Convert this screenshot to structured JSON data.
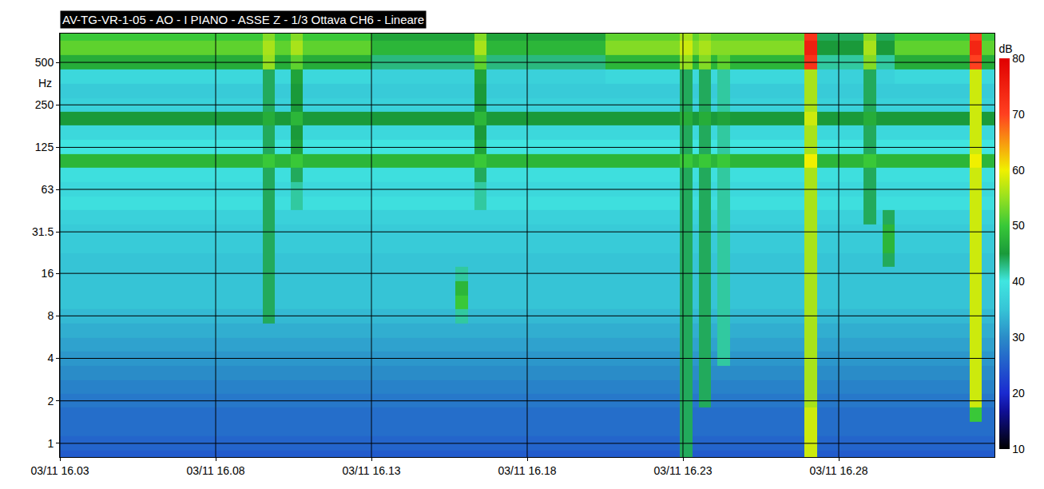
{
  "chart_data": {
    "type": "heatmap",
    "title": "AV-TG-VR-1-05 - AO - I PIANO - ASSE Z - 1/3 Ottava CH6 - Lineare",
    "ylabel": "Hz",
    "x": [
      0,
      6.5,
      6.9,
      7.4,
      7.8,
      10,
      12.7,
      13.1,
      13.3,
      13.7,
      17.5,
      19.9,
      20.3,
      20.5,
      20.9,
      21.1,
      21.5,
      23.9,
      24.3,
      25.8,
      26.2,
      26.4,
      26.8,
      29.2,
      29.6,
      30
    ],
    "y": [
      0.8,
      1,
      1.25,
      1.6,
      2,
      2.5,
      3.15,
      4,
      5,
      6.3,
      8,
      10,
      12.5,
      16,
      20,
      25,
      31.5,
      40,
      50,
      63,
      80,
      100,
      125,
      160,
      200,
      250,
      315,
      400,
      500,
      630,
      800
    ],
    "z": [
      [
        25,
        25,
        25,
        25,
        25,
        25,
        25,
        25,
        25,
        25,
        25,
        44,
        25,
        25,
        25,
        25,
        25,
        58,
        25,
        25,
        25,
        25,
        25,
        25,
        25
      ],
      [
        26,
        26,
        26,
        26,
        26,
        26,
        26,
        26,
        26,
        26,
        26,
        44,
        26,
        26,
        26,
        26,
        26,
        58,
        26,
        26,
        26,
        26,
        26,
        26,
        26
      ],
      [
        27,
        27,
        27,
        27,
        27,
        27,
        27,
        27,
        27,
        27,
        27,
        44,
        27,
        27,
        27,
        27,
        27,
        58,
        27,
        27,
        27,
        27,
        27,
        27,
        27
      ],
      [
        27,
        27,
        27,
        27,
        27,
        27,
        27,
        27,
        27,
        27,
        27,
        44,
        27,
        27,
        27,
        27,
        27,
        58,
        27,
        27,
        27,
        27,
        27,
        50,
        27
      ],
      [
        28,
        28,
        28,
        28,
        28,
        28,
        28,
        28,
        28,
        28,
        28,
        44,
        28,
        44,
        28,
        28,
        28,
        56,
        28,
        28,
        28,
        28,
        28,
        58,
        28
      ],
      [
        29,
        29,
        29,
        29,
        29,
        29,
        29,
        29,
        29,
        29,
        29,
        44,
        29,
        44,
        29,
        29,
        29,
        56,
        29,
        29,
        29,
        29,
        29,
        58,
        29
      ],
      [
        30,
        30,
        30,
        30,
        30,
        30,
        30,
        30,
        30,
        30,
        30,
        44,
        30,
        44,
        30,
        30,
        30,
        56,
        30,
        30,
        30,
        30,
        30,
        58,
        30
      ],
      [
        31,
        31,
        31,
        31,
        31,
        31,
        31,
        31,
        31,
        31,
        31,
        44,
        31,
        44,
        31,
        42,
        31,
        56,
        31,
        31,
        31,
        31,
        31,
        58,
        31
      ],
      [
        32,
        32,
        32,
        32,
        32,
        32,
        32,
        32,
        32,
        32,
        32,
        44,
        32,
        44,
        32,
        42,
        32,
        56,
        32,
        32,
        32,
        32,
        32,
        58,
        32
      ],
      [
        33,
        33,
        33,
        33,
        33,
        33,
        33,
        33,
        33,
        33,
        33,
        44,
        33,
        44,
        33,
        42,
        33,
        56,
        33,
        33,
        33,
        33,
        33,
        58,
        33
      ],
      [
        34,
        44,
        34,
        34,
        34,
        34,
        42,
        34,
        34,
        34,
        34,
        44,
        34,
        44,
        34,
        42,
        34,
        56,
        34,
        34,
        34,
        34,
        34,
        58,
        34
      ],
      [
        35,
        44,
        35,
        35,
        35,
        35,
        50,
        35,
        35,
        35,
        35,
        44,
        35,
        44,
        35,
        42,
        35,
        56,
        35,
        35,
        35,
        35,
        35,
        58,
        35
      ],
      [
        35,
        44,
        35,
        35,
        35,
        35,
        48,
        35,
        35,
        35,
        35,
        44,
        35,
        44,
        35,
        42,
        35,
        56,
        35,
        35,
        35,
        35,
        35,
        58,
        35
      ],
      [
        35,
        44,
        35,
        35,
        35,
        35,
        42,
        35,
        35,
        35,
        35,
        44,
        35,
        44,
        35,
        42,
        35,
        56,
        35,
        35,
        35,
        35,
        35,
        58,
        35
      ],
      [
        35,
        44,
        35,
        35,
        35,
        35,
        35,
        35,
        35,
        35,
        35,
        44,
        35,
        44,
        35,
        42,
        35,
        56,
        35,
        35,
        35,
        44,
        35,
        58,
        35
      ],
      [
        36,
        44,
        36,
        36,
        36,
        36,
        36,
        36,
        36,
        36,
        36,
        44,
        36,
        44,
        36,
        42,
        36,
        56,
        36,
        36,
        36,
        48,
        36,
        58,
        36
      ],
      [
        36,
        44,
        36,
        36,
        36,
        36,
        36,
        36,
        36,
        36,
        36,
        44,
        36,
        44,
        36,
        42,
        36,
        56,
        36,
        36,
        36,
        48,
        36,
        58,
        36
      ],
      [
        37,
        44,
        37,
        37,
        37,
        37,
        37,
        37,
        37,
        37,
        37,
        44,
        37,
        44,
        37,
        42,
        37,
        56,
        37,
        44,
        37,
        44,
        37,
        58,
        37
      ],
      [
        39,
        44,
        39,
        42,
        39,
        39,
        39,
        39,
        42,
        39,
        39,
        44,
        39,
        44,
        39,
        42,
        39,
        56,
        39,
        44,
        39,
        39,
        39,
        58,
        39
      ],
      [
        38,
        44,
        38,
        42,
        38,
        38,
        38,
        38,
        42,
        38,
        38,
        44,
        38,
        44,
        38,
        42,
        38,
        56,
        38,
        44,
        38,
        38,
        38,
        58,
        38
      ],
      [
        39,
        44,
        39,
        44,
        39,
        39,
        39,
        39,
        44,
        39,
        39,
        44,
        39,
        44,
        39,
        42,
        39,
        56,
        39,
        44,
        39,
        39,
        39,
        58,
        39
      ],
      [
        48,
        50,
        48,
        50,
        48,
        48,
        48,
        48,
        50,
        48,
        48,
        50,
        48,
        50,
        48,
        50,
        48,
        60,
        48,
        50,
        48,
        48,
        48,
        60,
        48
      ],
      [
        40,
        44,
        40,
        46,
        40,
        40,
        40,
        40,
        46,
        40,
        40,
        44,
        40,
        44,
        40,
        42,
        40,
        56,
        40,
        44,
        40,
        40,
        40,
        58,
        40
      ],
      [
        38,
        44,
        38,
        45,
        38,
        38,
        38,
        38,
        45,
        38,
        38,
        44,
        38,
        44,
        38,
        42,
        38,
        56,
        38,
        44,
        38,
        38,
        38,
        58,
        38
      ],
      [
        45,
        47,
        45,
        48,
        45,
        45,
        45,
        45,
        48,
        45,
        45,
        47,
        45,
        47,
        45,
        46,
        45,
        58,
        45,
        47,
        45,
        45,
        45,
        58,
        45
      ],
      [
        37,
        44,
        37,
        45,
        37,
        37,
        37,
        37,
        45,
        37,
        37,
        44,
        37,
        44,
        37,
        42,
        37,
        56,
        37,
        44,
        37,
        37,
        37,
        58,
        37
      ],
      [
        36,
        44,
        36,
        45,
        36,
        36,
        36,
        36,
        45,
        36,
        36,
        44,
        36,
        44,
        36,
        42,
        36,
        56,
        36,
        44,
        36,
        36,
        36,
        58,
        36
      ],
      [
        38,
        44,
        38,
        46,
        38,
        37,
        37,
        37,
        46,
        37,
        38,
        44,
        38,
        44,
        38,
        42,
        38,
        56,
        37,
        44,
        37,
        37,
        38,
        58,
        38
      ],
      [
        47,
        55,
        47,
        52,
        47,
        43,
        43,
        43,
        52,
        43,
        48,
        55,
        48,
        54,
        48,
        52,
        48,
        72,
        42,
        54,
        42,
        42,
        47,
        70,
        47
      ],
      [
        52,
        56,
        52,
        56,
        52,
        48,
        48,
        48,
        56,
        48,
        54,
        58,
        54,
        56,
        54,
        54,
        54,
        75,
        45,
        56,
        45,
        45,
        52,
        74,
        52
      ],
      [
        50,
        54,
        50,
        54,
        50,
        46,
        46,
        46,
        54,
        46,
        52,
        56,
        52,
        54,
        52,
        52,
        52,
        72,
        44,
        54,
        44,
        44,
        50,
        70,
        50
      ]
    ],
    "xlim": [
      0,
      30
    ],
    "xticks": [
      {
        "value": 0,
        "label": "03/11 16.03"
      },
      {
        "value": 5,
        "label": "03/11 16.08"
      },
      {
        "value": 10,
        "label": "03/11 16.13"
      },
      {
        "value": 15,
        "label": "03/11 16.18"
      },
      {
        "value": 20,
        "label": "03/11 16.23"
      },
      {
        "value": 25,
        "label": "03/11 16.28"
      }
    ],
    "ylim": [
      0.8,
      800
    ],
    "yticks": [
      1,
      2,
      4,
      8,
      16,
      31.5,
      63,
      125,
      250,
      500
    ],
    "log": "y",
    "grid": true,
    "colorbar_range": [
      10,
      80
    ],
    "colorbar_ticks": [
      10,
      20,
      30,
      40,
      50,
      60,
      70,
      80
    ],
    "colorbar_label": "dB"
  }
}
